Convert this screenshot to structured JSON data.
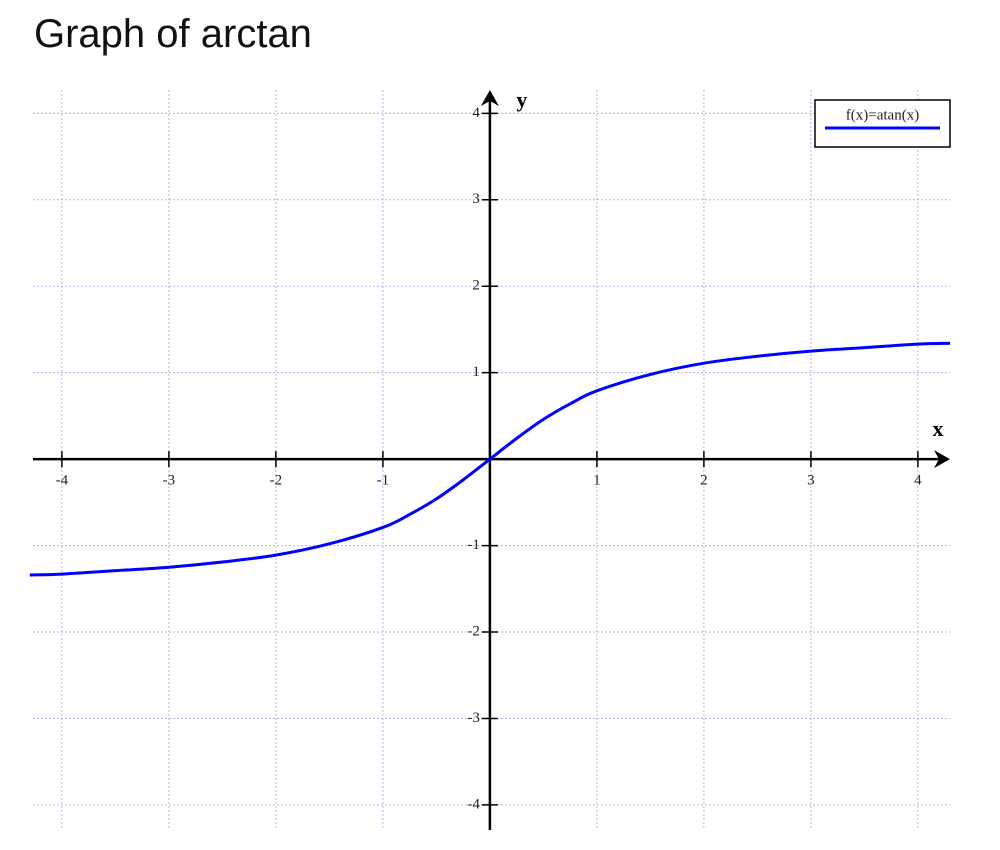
{
  "chart_data": {
    "type": "line",
    "title": "Graph of arctan",
    "x_label": "x",
    "y_label": "y",
    "x": [
      -4.3,
      -4,
      -3.5,
      -3,
      -2.5,
      -2,
      -1.5,
      -1,
      -0.75,
      -0.5,
      -0.25,
      0,
      0.25,
      0.5,
      0.75,
      1,
      1.5,
      2,
      2.5,
      3,
      3.5,
      4,
      4.3
    ],
    "series": [
      {
        "name": "f(x)=atan(x)",
        "color": "#0000ff",
        "values": [
          -1.34,
          -1.33,
          -1.29,
          -1.25,
          -1.19,
          -1.11,
          -0.98,
          -0.79,
          -0.64,
          -0.46,
          -0.24,
          0,
          0.24,
          0.46,
          0.64,
          0.79,
          0.98,
          1.11,
          1.19,
          1.25,
          1.29,
          1.33,
          1.34
        ]
      }
    ],
    "xlim": [
      -4.27,
      4.3
    ],
    "ylim": [
      -4.29,
      4.27
    ],
    "xticks": [
      -4,
      -3,
      -2,
      -1,
      1,
      2,
      3,
      4
    ],
    "yticks": [
      -4,
      -3,
      -2,
      -1,
      1,
      2,
      3,
      4
    ],
    "grid": true,
    "legend": "upper right"
  }
}
